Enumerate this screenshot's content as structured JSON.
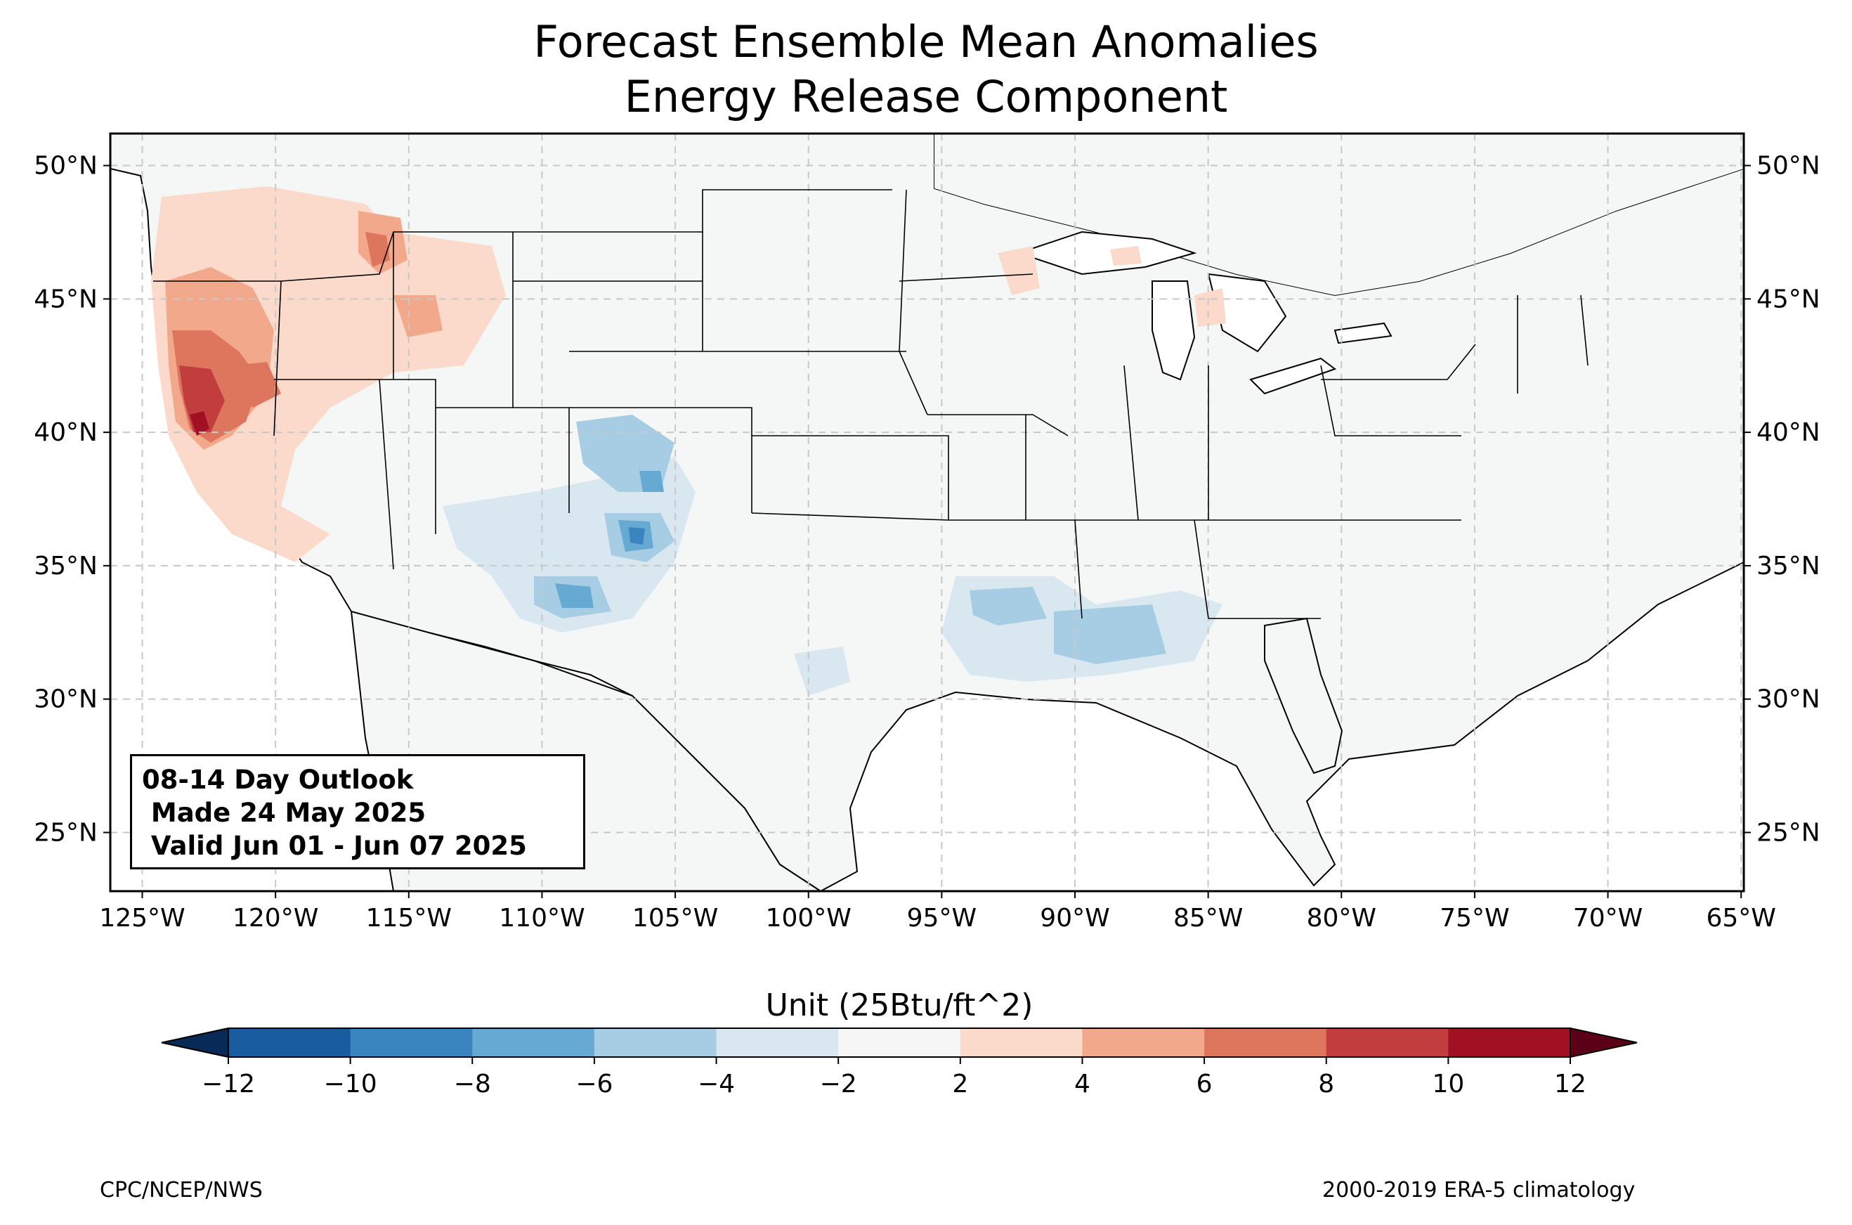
{
  "title": "Forecast Ensemble Mean Anomalies",
  "subtitle": "Energy Release Component",
  "info_box": {
    "line1": "08-14 Day Outlook",
    "line2": " Made 24 May 2025",
    "line3": " Valid Jun 01 - Jun 07 2025"
  },
  "axes": {
    "longitude_ticks": [
      "125°W",
      "120°W",
      "115°W",
      "110°W",
      "105°W",
      "100°W",
      "95°W",
      "90°W",
      "85°W",
      "80°W",
      "75°W",
      "70°W",
      "65°W"
    ],
    "latitude_ticks_left": [
      "50°N",
      "45°N",
      "40°N",
      "35°N",
      "30°N",
      "25°N"
    ],
    "latitude_ticks_right": [
      "50°N",
      "45°N",
      "40°N",
      "35°N",
      "30°N",
      "25°N"
    ],
    "lon_range": [
      -126.2,
      -64.9
    ],
    "lat_range": [
      22.8,
      51.2
    ],
    "gridlines": true
  },
  "colorbar": {
    "label": "Unit (25Btu/ft^2)",
    "ticks": [
      "−12",
      "−10",
      "−8",
      "−6",
      "−4",
      "−2",
      "2",
      "4",
      "6",
      "8",
      "10",
      "12"
    ],
    "colors": [
      "#1a5ca0",
      "#3a84bf",
      "#66a9d2",
      "#a6cde3",
      "#d8e7f0",
      "#f7f7f7",
      "#fbdacb",
      "#f2a98b",
      "#de765e",
      "#c23d3d",
      "#a01124"
    ],
    "under_color": "#082a57",
    "over_color": "#5c0017",
    "extend": "both"
  },
  "footer": {
    "left": "CPC/NCEP/NWS",
    "right": "2000-2019 ERA-5 climatology"
  },
  "map_colors": {
    "land": "#f5f7f6",
    "border": "#000000",
    "county_lines": "#9a9a9a",
    "grid": "#c8c8c8"
  }
}
